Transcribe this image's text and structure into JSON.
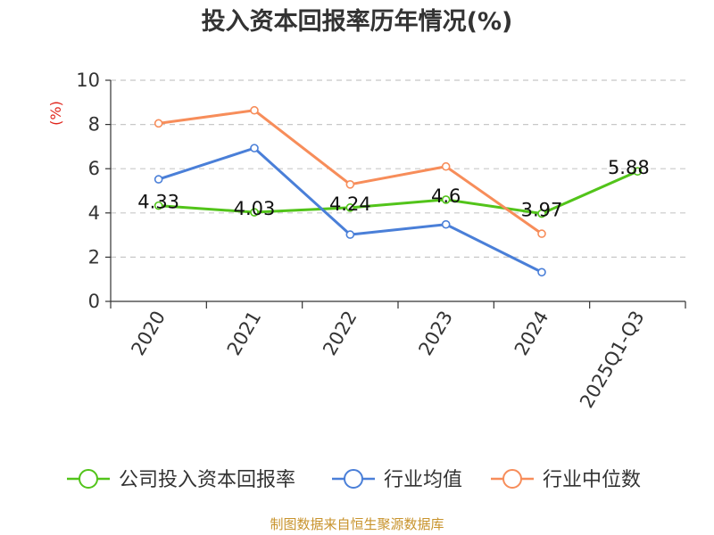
{
  "chart_data": {
    "type": "line",
    "title": "投入资本回报率历年情况(%)",
    "ylabel": "(%)",
    "xlabel": "",
    "categories": [
      "2020",
      "2021",
      "2022",
      "2023",
      "2024",
      "2025Q1-Q3"
    ],
    "ylim": [
      0,
      10
    ],
    "yticks": [
      0,
      2,
      4,
      6,
      8,
      10
    ],
    "grid": true,
    "series": [
      {
        "name": "公司投入资本回报率",
        "color": "#52c41a",
        "values": [
          4.33,
          4.03,
          4.24,
          4.6,
          3.97,
          5.88
        ],
        "labels": [
          "4.33",
          "4.03",
          "4.24",
          "4.6",
          "3.97",
          "5.88"
        ]
      },
      {
        "name": "行业均值",
        "color": "#4a7fd8",
        "values": [
          5.52,
          6.93,
          3.02,
          3.48,
          1.32,
          null
        ]
      },
      {
        "name": "行业中位数",
        "color": "#f78d5a",
        "values": [
          8.05,
          8.64,
          5.29,
          6.1,
          3.06,
          null
        ]
      }
    ],
    "legend": "bottom",
    "source": "制图数据来自恒生聚源数据库"
  }
}
